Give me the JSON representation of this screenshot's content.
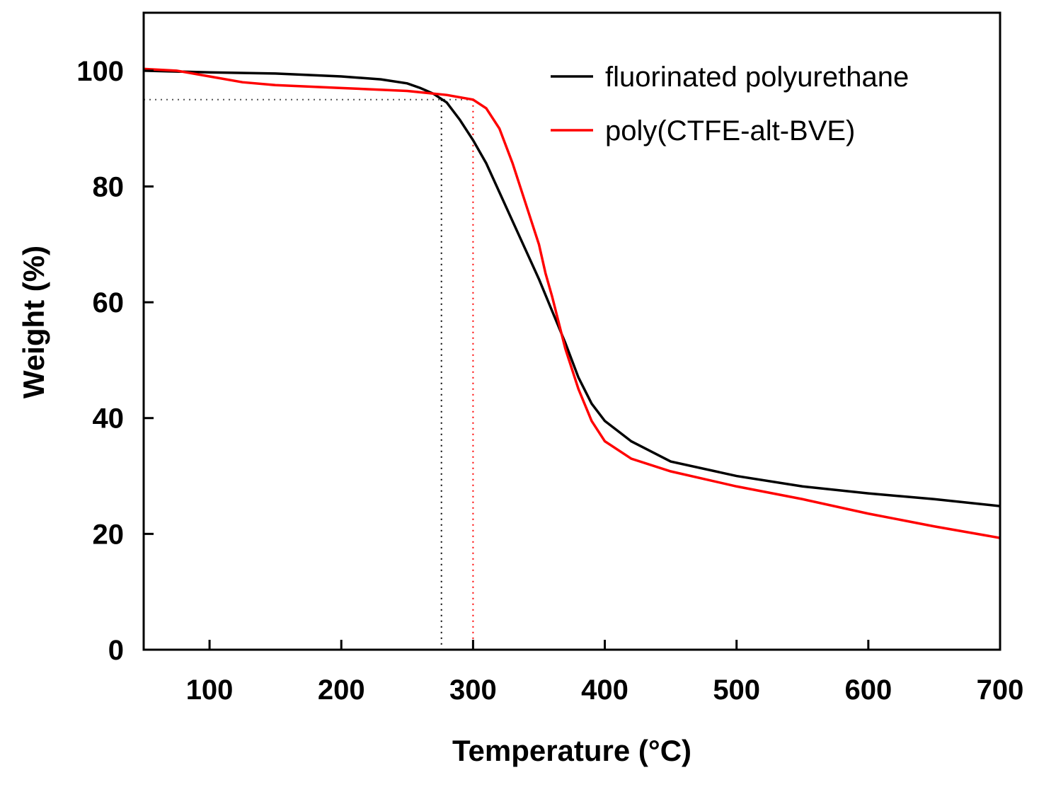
{
  "chart_data": {
    "type": "line",
    "x_label": "Temperature (°C)",
    "y_label": "Weight (%)",
    "xlim": [
      50,
      700
    ],
    "ylim": [
      0,
      110
    ],
    "xticks": [
      100,
      200,
      300,
      400,
      500,
      600,
      700
    ],
    "yticks": [
      0,
      20,
      40,
      60,
      80,
      100
    ],
    "legend": "upper right",
    "series": [
      {
        "name": "fluorinated polyurethane",
        "color": "#000000",
        "x": [
          50,
          100,
          150,
          200,
          230,
          250,
          260,
          270,
          280,
          290,
          300,
          310,
          320,
          330,
          340,
          350,
          360,
          370,
          380,
          390,
          400,
          420,
          450,
          500,
          550,
          600,
          650,
          700
        ],
        "values": [
          100,
          99.7,
          99.5,
          99,
          98.5,
          97.8,
          97,
          96,
          94.5,
          91.5,
          88,
          84,
          79,
          74,
          69,
          64,
          58.5,
          53,
          47,
          42.5,
          39.5,
          36,
          32.5,
          30,
          28.2,
          27,
          26,
          24.8
        ]
      },
      {
        "name": "poly(CTFE-alt-BVE)",
        "color": "#ff0000",
        "x": [
          50,
          75,
          100,
          125,
          150,
          200,
          250,
          280,
          300,
          310,
          320,
          330,
          340,
          350,
          355,
          360,
          365,
          370,
          380,
          390,
          400,
          420,
          450,
          500,
          550,
          600,
          650,
          700
        ],
        "values": [
          100.3,
          100,
          99,
          98,
          97.5,
          97,
          96.5,
          95.8,
          95,
          93.5,
          90,
          84,
          77,
          70,
          65,
          61,
          56.5,
          52,
          45,
          39.5,
          36,
          33,
          30.8,
          28.2,
          26,
          23.5,
          21.3,
          19.3
        ]
      }
    ],
    "reference_lines": [
      {
        "x": 276,
        "y": 95,
        "color": "#000000"
      },
      {
        "x": 300,
        "y": 95,
        "color": "#ff0000"
      }
    ]
  }
}
